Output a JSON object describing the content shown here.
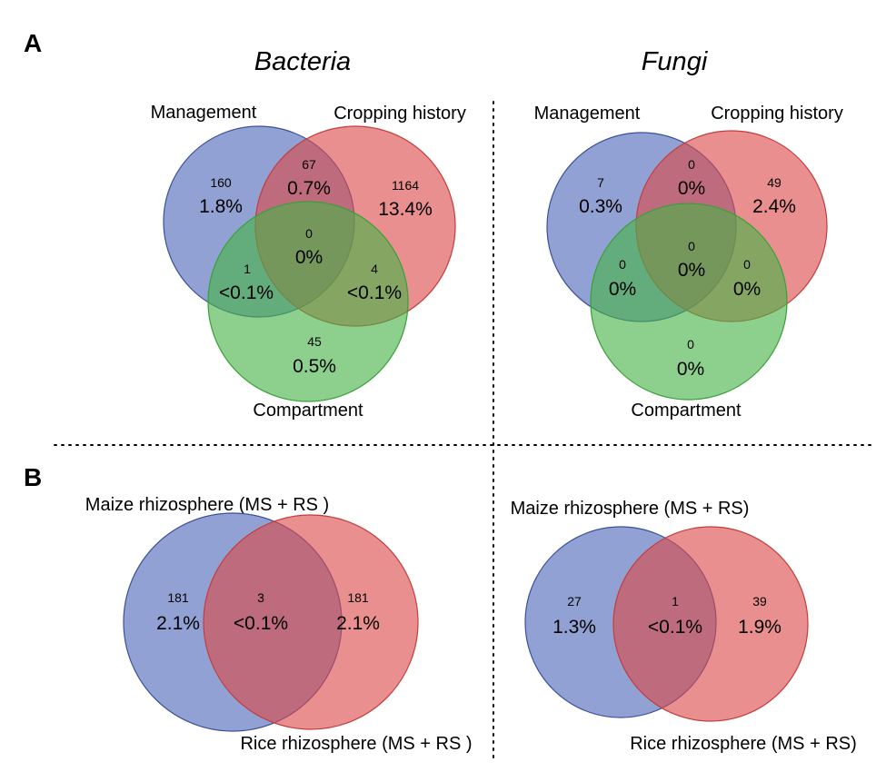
{
  "panels": {
    "A": {
      "letter": "A"
    },
    "B": {
      "letter": "B"
    }
  },
  "colors": {
    "blue": "#4f68b8",
    "blue_stroke": "#3c4f9a",
    "red": "#dc4b4b",
    "red_stroke": "#c43c3c",
    "green": "#47b347",
    "green_stroke": "#38a038"
  },
  "venn_a_bacteria": {
    "title": "Bacteria",
    "labels": {
      "management": "Management",
      "cropping": "Cropping history",
      "compartment": "Compartment"
    },
    "regions": {
      "m_only": {
        "count": "160",
        "pct": "1.8%"
      },
      "mc": {
        "count": "67",
        "pct": "0.7%"
      },
      "c_only": {
        "count": "1164",
        "pct": "13.4%"
      },
      "center": {
        "count": "0",
        "pct": "0%"
      },
      "mk": {
        "count": "1",
        "pct": "<0.1%"
      },
      "ck": {
        "count": "4",
        "pct": "<0.1%"
      },
      "k_only": {
        "count": "45",
        "pct": "0.5%"
      }
    }
  },
  "venn_a_fungi": {
    "title": "Fungi",
    "labels": {
      "management": "Management",
      "cropping": "Cropping history",
      "compartment": "Compartment"
    },
    "regions": {
      "m_only": {
        "count": "7",
        "pct": "0.3%"
      },
      "mc": {
        "count": "0",
        "pct": "0%"
      },
      "c_only": {
        "count": "49",
        "pct": "2.4%"
      },
      "center": {
        "count": "0",
        "pct": "0%"
      },
      "mk": {
        "count": "0",
        "pct": "0%"
      },
      "ck": {
        "count": "0",
        "pct": "0%"
      },
      "k_only": {
        "count": "0",
        "pct": "0%"
      }
    }
  },
  "venn_b_bacteria": {
    "labels": {
      "maize": "Maize rhizosphere (MS + RS )",
      "rice": "Rice rhizosphere (MS + RS )"
    },
    "regions": {
      "maize_only": {
        "count": "181",
        "pct": "2.1%"
      },
      "shared": {
        "count": "3",
        "pct": "<0.1%"
      },
      "rice_only": {
        "count": "181",
        "pct": "2.1%"
      }
    }
  },
  "venn_b_fungi": {
    "labels": {
      "maize": "Maize rhizosphere (MS + RS)",
      "rice": "Rice rhizosphere (MS + RS)"
    },
    "regions": {
      "maize_only": {
        "count": "27",
        "pct": "1.3%"
      },
      "shared": {
        "count": "1",
        "pct": "<0.1%"
      },
      "rice_only": {
        "count": "39",
        "pct": "1.9%"
      }
    }
  }
}
